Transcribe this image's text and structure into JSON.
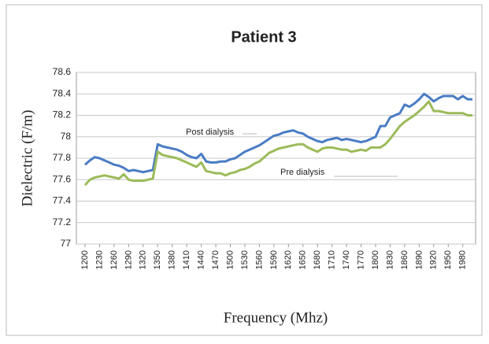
{
  "chart_data": {
    "type": "line",
    "title": "Patient 3",
    "x_label": "Frequency (Mhz)",
    "y_label": "Dielectric (F/m)",
    "x": [
      1200,
      1210,
      1220,
      1230,
      1240,
      1250,
      1260,
      1270,
      1280,
      1290,
      1300,
      1310,
      1320,
      1330,
      1340,
      1350,
      1360,
      1370,
      1380,
      1390,
      1400,
      1410,
      1420,
      1430,
      1440,
      1450,
      1460,
      1470,
      1480,
      1490,
      1500,
      1510,
      1520,
      1530,
      1540,
      1550,
      1560,
      1570,
      1580,
      1590,
      1600,
      1610,
      1620,
      1630,
      1640,
      1650,
      1660,
      1670,
      1680,
      1690,
      1700,
      1710,
      1720,
      1730,
      1740,
      1750,
      1760,
      1770,
      1780,
      1790,
      1800,
      1810,
      1820,
      1830,
      1840,
      1850,
      1860,
      1870,
      1880,
      1890,
      1900,
      1910,
      1920,
      1930,
      1940,
      1950,
      1960,
      1970,
      1980,
      1990,
      2000
    ],
    "series": [
      {
        "name": "Post dialysis",
        "color": "#4a7cc4",
        "values": [
          77.74,
          77.78,
          77.81,
          77.8,
          77.78,
          77.76,
          77.74,
          77.73,
          77.71,
          77.68,
          77.69,
          77.68,
          77.67,
          77.68,
          77.69,
          77.93,
          77.91,
          77.9,
          77.89,
          77.88,
          77.86,
          77.83,
          77.81,
          77.8,
          77.84,
          77.77,
          77.76,
          77.76,
          77.77,
          77.77,
          77.79,
          77.8,
          77.83,
          77.86,
          77.88,
          77.9,
          77.92,
          77.95,
          77.98,
          78.01,
          78.02,
          78.04,
          78.05,
          78.06,
          78.04,
          78.03,
          78.0,
          77.98,
          77.96,
          77.95,
          77.97,
          77.98,
          77.99,
          77.97,
          77.98,
          77.97,
          77.96,
          77.95,
          77.96,
          77.98,
          78.0,
          78.1,
          78.1,
          78.18,
          78.2,
          78.22,
          78.3,
          78.28,
          78.31,
          78.35,
          78.4,
          78.37,
          78.33,
          78.36,
          78.38,
          78.38,
          78.38,
          78.35,
          78.38,
          78.35,
          78.35
        ]
      },
      {
        "name": "Pre dialysis",
        "color": "#9bbb59",
        "values": [
          77.55,
          77.6,
          77.62,
          77.63,
          77.64,
          77.63,
          77.62,
          77.61,
          77.65,
          77.6,
          77.59,
          77.59,
          77.59,
          77.6,
          77.61,
          77.86,
          77.83,
          77.82,
          77.81,
          77.8,
          77.78,
          77.76,
          77.74,
          77.72,
          77.76,
          77.68,
          77.67,
          77.66,
          77.66,
          77.64,
          77.66,
          77.67,
          77.69,
          77.7,
          77.72,
          77.75,
          77.77,
          77.81,
          77.85,
          77.87,
          77.89,
          77.9,
          77.91,
          77.92,
          77.93,
          77.93,
          77.9,
          77.88,
          77.86,
          77.89,
          77.9,
          77.9,
          77.89,
          77.88,
          77.88,
          77.86,
          77.87,
          77.88,
          77.87,
          77.9,
          77.9,
          77.9,
          77.93,
          77.98,
          78.04,
          78.1,
          78.14,
          78.17,
          78.2,
          78.24,
          78.28,
          78.33,
          78.24,
          78.24,
          78.23,
          78.22,
          78.22,
          78.22,
          78.22,
          78.2,
          78.2
        ]
      }
    ],
    "xlim": [
      1200,
      2000
    ],
    "xticks": [
      1200,
      1230,
      1260,
      1290,
      1320,
      1350,
      1380,
      1410,
      1440,
      1470,
      1500,
      1530,
      1560,
      1590,
      1620,
      1650,
      1680,
      1710,
      1740,
      1770,
      1800,
      1830,
      1860,
      1890,
      1920,
      1950,
      1980
    ],
    "ylim": [
      77,
      78.6
    ],
    "yticks": [
      77,
      77.2,
      77.4,
      77.6,
      77.8,
      78,
      78.2,
      78.4,
      78.6
    ],
    "grid": true
  }
}
